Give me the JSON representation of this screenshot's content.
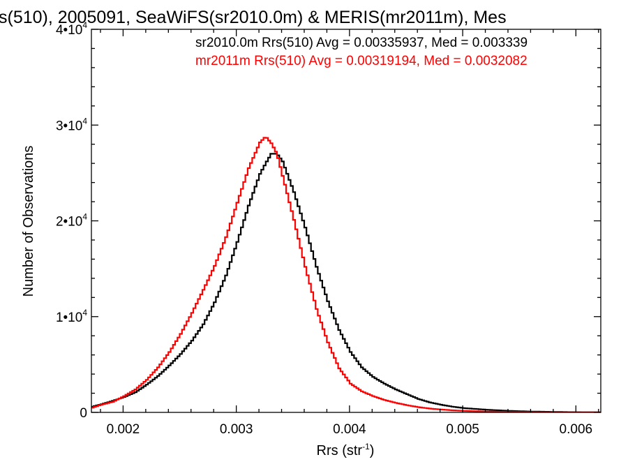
{
  "chart_data": {
    "type": "line",
    "title": "s(510), 2005091, SeaWiFS(sr2010.0m) & MERIS(mr2011m), Mes",
    "xlabel": "Rrs (str",
    "xlabel_sup": "-1",
    "xlabel_close": ")",
    "ylabel": "Number of Observations",
    "xlim": [
      0.00172,
      0.00622
    ],
    "ylim": [
      0,
      40000
    ],
    "x_ticks": [
      0.002,
      0.003,
      0.004,
      0.005,
      0.006
    ],
    "x_tick_labels": [
      "0.002",
      "0.003",
      "0.004",
      "0.005",
      "0.006"
    ],
    "y_ticks": [
      0,
      10000,
      20000,
      30000,
      40000
    ],
    "y_tick_labels": [
      {
        "base": "0",
        "exp": ""
      },
      {
        "base": "1•10",
        "exp": "4"
      },
      {
        "base": "2•10",
        "exp": "4"
      },
      {
        "base": "3•10",
        "exp": "4"
      },
      {
        "base": "4•10",
        "exp": "4"
      }
    ],
    "grid": false,
    "legend_placement": "top-right",
    "series": [
      {
        "name": "sr2010.0m Rrs(510) Avg = 0.00335937, Med = 0.003339",
        "color": "#000000",
        "x": [
          0.00172,
          0.0018,
          0.0019,
          0.002,
          0.0021,
          0.0022,
          0.0023,
          0.0024,
          0.0025,
          0.0026,
          0.0027,
          0.0028,
          0.0029,
          0.003,
          0.0031,
          0.0032,
          0.00325,
          0.0033,
          0.00335,
          0.0034,
          0.0035,
          0.0036,
          0.0037,
          0.0038,
          0.0039,
          0.004,
          0.0041,
          0.0042,
          0.0043,
          0.0044,
          0.0045,
          0.0046,
          0.0047,
          0.0048,
          0.0049,
          0.005,
          0.0052,
          0.0054,
          0.0056,
          0.0058,
          0.006,
          0.00622
        ],
        "y": [
          600,
          850,
          1200,
          1600,
          2100,
          2900,
          3800,
          4900,
          6100,
          7500,
          9200,
          11500,
          14300,
          17800,
          21600,
          24900,
          26000,
          27000,
          27000,
          26200,
          23000,
          19300,
          15200,
          11600,
          8600,
          6300,
          4700,
          3700,
          3000,
          2400,
          1900,
          1400,
          1050,
          800,
          600,
          450,
          280,
          160,
          90,
          50,
          20,
          10
        ]
      },
      {
        "name": "mr2011m Rrs(510) Avg = 0.00319194, Med = 0.0032082",
        "color": "#ff0000",
        "x": [
          0.00172,
          0.0018,
          0.0019,
          0.002,
          0.0021,
          0.0022,
          0.0023,
          0.0024,
          0.0025,
          0.0026,
          0.0027,
          0.0028,
          0.0029,
          0.003,
          0.0031,
          0.0032,
          0.00325,
          0.0033,
          0.00335,
          0.0034,
          0.0035,
          0.0036,
          0.0037,
          0.0038,
          0.0039,
          0.004,
          0.0041,
          0.0042,
          0.0043,
          0.0044,
          0.0045,
          0.0046,
          0.0047,
          0.0048,
          0.0049,
          0.005,
          0.0052,
          0.0054,
          0.0056,
          0.0058,
          0.006,
          0.00622
        ],
        "y": [
          500,
          800,
          1100,
          1700,
          2400,
          3400,
          4700,
          6300,
          8200,
          10400,
          12800,
          15300,
          18300,
          21900,
          25500,
          28200,
          28800,
          28100,
          27000,
          24700,
          20100,
          15200,
          10800,
          7300,
          4600,
          3000,
          2200,
          1700,
          1300,
          1000,
          750,
          550,
          400,
          300,
          220,
          160,
          90,
          50,
          30,
          15,
          8,
          5
        ]
      }
    ]
  }
}
